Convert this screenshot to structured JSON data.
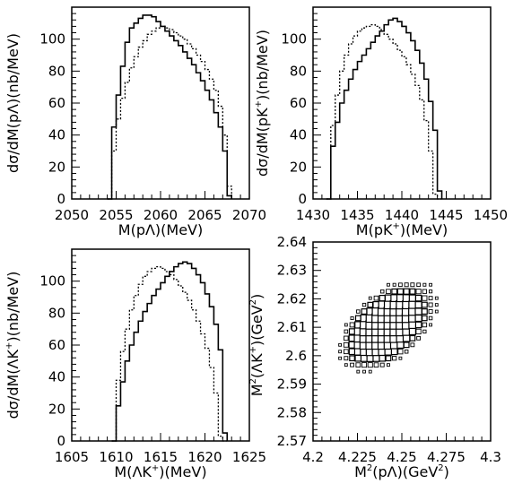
{
  "chart_data": [
    {
      "type": "histogram",
      "xlabel": "M(pΛ)(MeV)",
      "ylabel": "dσ/dM(pΛ)(nb/MeV)",
      "xlim": [
        2050,
        2070
      ],
      "ylim": [
        0,
        120
      ],
      "xticks": [
        "2050",
        "2055",
        "2060",
        "2065",
        "2070"
      ],
      "yticks": [
        "0",
        "20",
        "40",
        "60",
        "80",
        "100"
      ],
      "bin_width": 0.5,
      "x_start": 2054.0,
      "series": [
        {
          "style": "solid",
          "values": [
            0,
            45,
            65,
            83,
            98,
            107,
            110,
            113,
            115,
            115,
            114,
            111,
            108,
            105,
            102,
            99,
            96,
            92,
            88,
            84,
            79,
            74,
            68,
            62,
            54,
            45,
            30,
            2
          ]
        },
        {
          "style": "dotted",
          "values": [
            0,
            30,
            50,
            63,
            73,
            82,
            89,
            95,
            99,
            103,
            105,
            107,
            108,
            107,
            106,
            104,
            102,
            100,
            97,
            94,
            90,
            86,
            81,
            75,
            68,
            58,
            40,
            8
          ]
        }
      ]
    },
    {
      "type": "histogram",
      "xlabel": "M(pK+)(MeV)",
      "ylabel": "dσ/dM(pK+)(nb/MeV)",
      "xlim": [
        1430,
        1450
      ],
      "ylim": [
        0,
        120
      ],
      "xticks": [
        "1430",
        "1435",
        "1440",
        "1445",
        "1450"
      ],
      "yticks": [
        "0",
        "20",
        "40",
        "60",
        "80",
        "100"
      ],
      "bin_width": 0.5,
      "x_start": 1431.5,
      "series": [
        {
          "style": "solid",
          "values": [
            0,
            33,
            48,
            60,
            68,
            75,
            81,
            86,
            90,
            94,
            98,
            102,
            105,
            109,
            112,
            113,
            111,
            108,
            104,
            99,
            93,
            85,
            75,
            61,
            43,
            5
          ]
        },
        {
          "style": "dotted",
          "values": [
            0,
            46,
            65,
            80,
            90,
            97,
            102,
            105,
            107,
            108,
            109,
            108,
            106,
            103,
            100,
            97,
            93,
            89,
            84,
            78,
            71,
            62,
            49,
            30,
            3,
            0
          ]
        }
      ]
    },
    {
      "type": "histogram",
      "xlabel": "M(ΛK+)(MeV)",
      "ylabel": "dσ/dM(ΛK+)(nb/MeV)",
      "xlim": [
        1605,
        1625
      ],
      "ylim": [
        0,
        120
      ],
      "xticks": [
        "1605",
        "1610",
        "1615",
        "1620",
        "1625"
      ],
      "yticks": [
        "0",
        "20",
        "40",
        "60",
        "80",
        "100"
      ],
      "bin_width": 0.5,
      "x_start": 1609.5,
      "series": [
        {
          "style": "solid",
          "values": [
            0,
            22,
            37,
            50,
            60,
            68,
            75,
            81,
            86,
            91,
            95,
            99,
            103,
            106,
            109,
            111,
            112,
            111,
            108,
            104,
            99,
            92,
            84,
            73,
            57,
            5
          ]
        },
        {
          "style": "dotted",
          "values": [
            0,
            38,
            56,
            70,
            82,
            91,
            98,
            103,
            106,
            108,
            109,
            108,
            106,
            104,
            101,
            97,
            93,
            88,
            82,
            75,
            67,
            58,
            46,
            30,
            3,
            0
          ]
        }
      ]
    },
    {
      "type": "scatter",
      "xlabel": "M²(pΛ)(GeV²)",
      "ylabel": "M²(ΛK+)(GeV²)",
      "xlim": [
        4.2,
        4.3
      ],
      "ylim": [
        2.57,
        2.64
      ],
      "xticks": [
        "4.2",
        "4.225",
        "4.25",
        "4.275",
        "4.3"
      ],
      "yticks": [
        "2.57",
        "2.58",
        "2.59",
        "2.6",
        "2.61",
        "2.62",
        "2.63",
        "2.64"
      ],
      "marker": "box",
      "region": {
        "center_x": 4.2425,
        "center_y": 2.6105,
        "orientation": "tilted ellipse"
      }
    }
  ]
}
